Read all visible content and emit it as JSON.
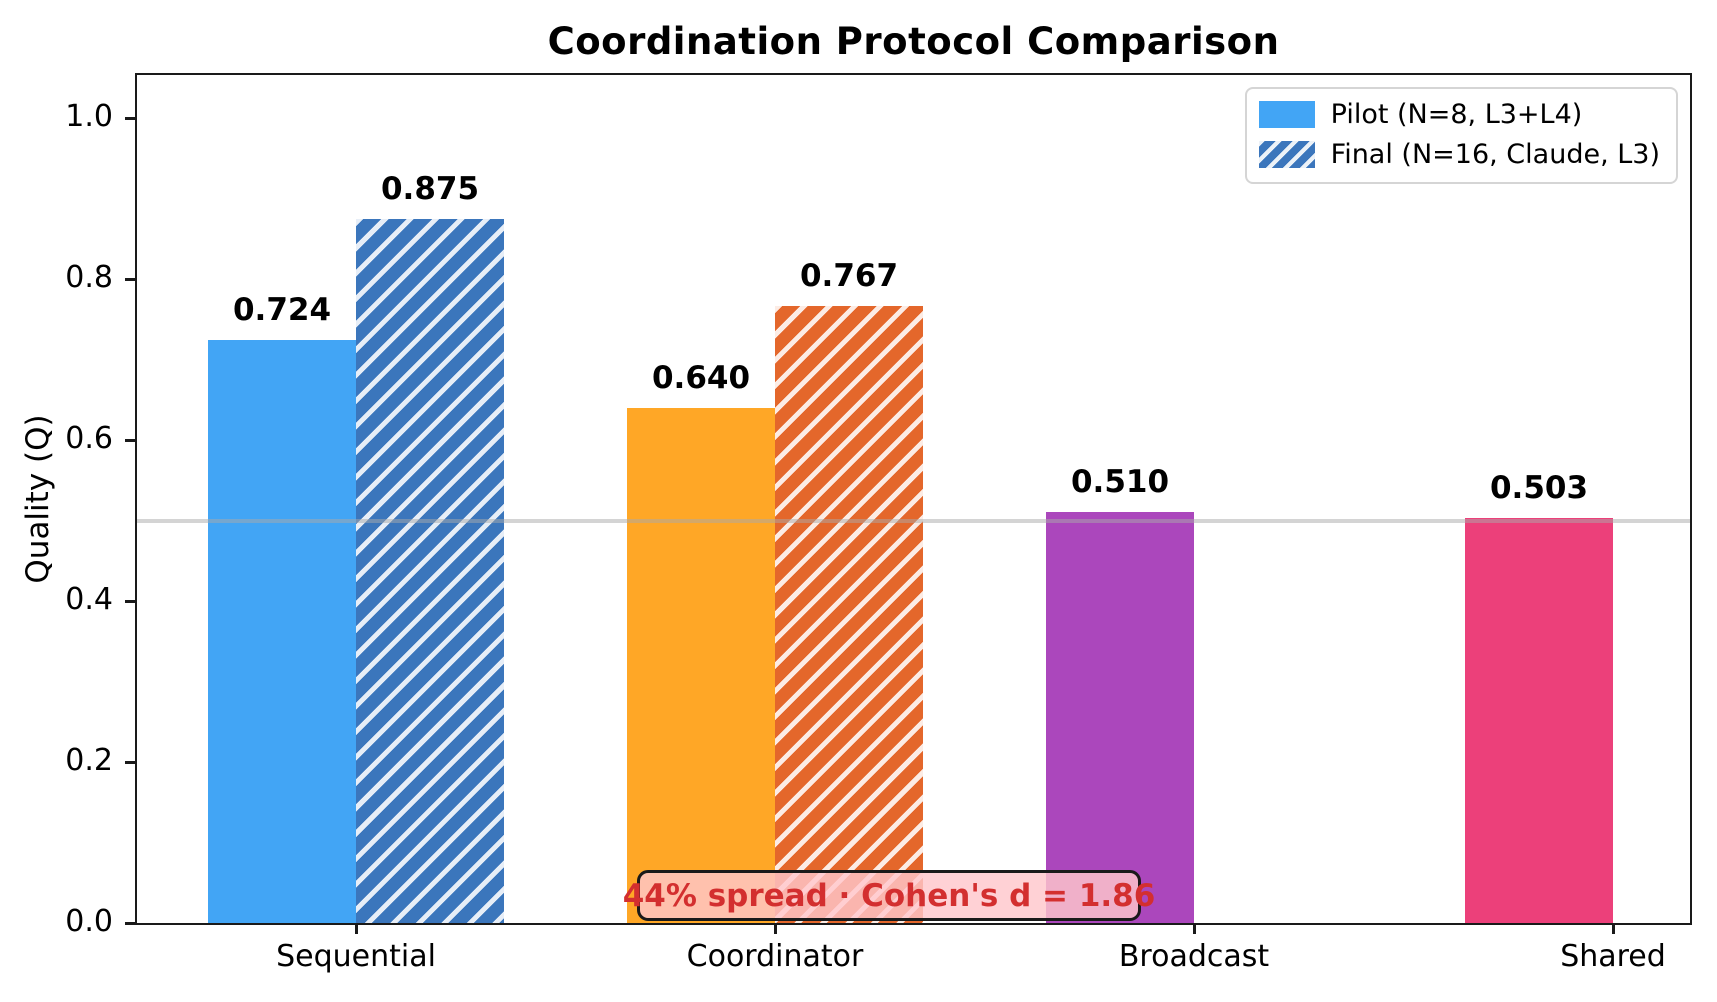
{
  "chart_data": {
    "type": "bar",
    "title": "Coordination Protocol Comparison",
    "ylabel": "Quality (Q)",
    "xlabel": "",
    "categories": [
      "Sequential",
      "Coordinator",
      "Broadcast",
      "Shared"
    ],
    "series": [
      {
        "name": "Pilot (N=8, L3+L4)",
        "style": "solid",
        "values": [
          0.724,
          0.64,
          0.51,
          0.503
        ],
        "colors": [
          "#42A5F5",
          "#FFA726",
          "#AB47BC",
          "#EC407A"
        ]
      },
      {
        "name": "Final (N=16, Claude, L3)",
        "style": "hatched",
        "hatch": "/",
        "values": [
          0.875,
          0.767,
          null,
          null
        ],
        "colors": [
          "#3B76BC",
          "#E4672B",
          null,
          null
        ]
      }
    ],
    "value_labels": {
      "series0": [
        "0.724",
        "0.640",
        "0.510",
        "0.503"
      ],
      "series1": [
        "0.875",
        "0.767",
        null,
        null
      ]
    },
    "ylim": [
      0,
      1.05
    ],
    "yticks": [
      "0.0",
      "0.2",
      "0.4",
      "0.6",
      "0.8",
      "1.0"
    ],
    "grid": false,
    "reference_line": {
      "y": 0.5,
      "color": "#AAAAAA"
    },
    "legend_position": "upper right",
    "legend_swatch_colors": {
      "pilot": "#42A5F5",
      "final": "#3B76BC"
    },
    "annotation": {
      "text": "44% spread · Cohen's d = 1.86",
      "text_color": "#D32F2F",
      "background_color": "rgba(255,199,204,0.82)"
    },
    "axis_color": "#1a1a1a",
    "hatch_stripe_color": "rgba(255,255,255,0.88)"
  }
}
